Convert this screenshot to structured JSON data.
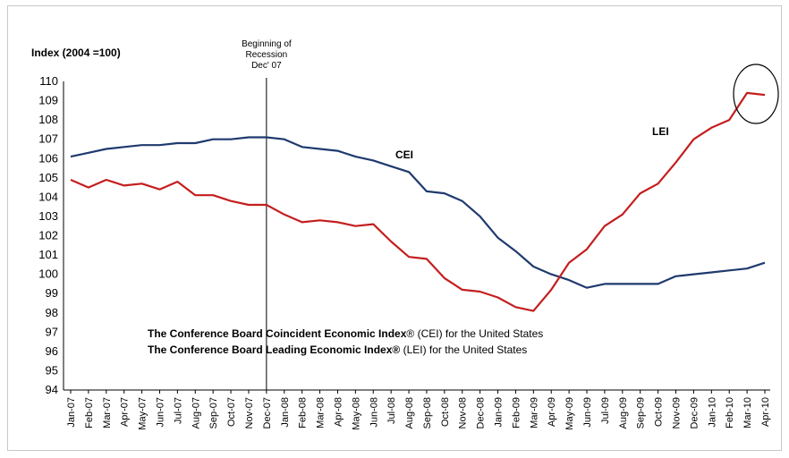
{
  "chart_data": {
    "type": "line",
    "ylabel": "Index (2004 =100)",
    "ylim": [
      94,
      110
    ],
    "yticks": [
      94,
      95,
      96,
      97,
      98,
      99,
      100,
      101,
      102,
      103,
      104,
      105,
      106,
      107,
      108,
      109,
      110
    ],
    "grid": false,
    "categories": [
      "Jan-07",
      "Feb-07",
      "Mar-07",
      "Apr-07",
      "May-07",
      "Jun-07",
      "Jul-07",
      "Aug-07",
      "Sep-07",
      "Oct-07",
      "Nov-07",
      "Dec-07",
      "Jan-08",
      "Feb-08",
      "Mar-08",
      "Apr-08",
      "May-08",
      "Jun-08",
      "Jul-08",
      "Aug-08",
      "Sep-08",
      "Oct-08",
      "Nov-08",
      "Dec-08",
      "Jan-09",
      "Feb-09",
      "Mar-09",
      "Apr-09",
      "May-09",
      "Jun-09",
      "Jul-09",
      "Aug-09",
      "Sep-09",
      "Oct-09",
      "Nov-09",
      "Dec-09",
      "Jan-10",
      "Feb-10",
      "Mar-10",
      "Apr-10"
    ],
    "series": [
      {
        "name": "CEI",
        "color": "#1f3a6e",
        "values": [
          106.1,
          106.3,
          106.5,
          106.6,
          106.7,
          106.7,
          106.8,
          106.8,
          107.0,
          107.0,
          107.1,
          107.1,
          107.0,
          106.6,
          106.5,
          106.4,
          106.1,
          105.9,
          105.6,
          105.3,
          104.3,
          104.2,
          103.8,
          103.0,
          101.9,
          101.2,
          100.4,
          100.0,
          99.7,
          99.3,
          99.5,
          99.5,
          99.5,
          99.5,
          99.9,
          100.0,
          100.1,
          100.2,
          100.3,
          100.6
        ]
      },
      {
        "name": "LEI",
        "color": "#c41e1e",
        "values": [
          104.9,
          104.5,
          104.9,
          104.6,
          104.7,
          104.4,
          104.8,
          104.1,
          104.1,
          103.8,
          103.6,
          103.6,
          103.1,
          102.7,
          102.8,
          102.7,
          102.5,
          102.6,
          101.7,
          100.9,
          100.8,
          99.8,
          99.2,
          99.1,
          98.8,
          98.3,
          98.1,
          99.2,
          100.6,
          101.3,
          102.5,
          103.1,
          104.2,
          104.7,
          105.8,
          107.0,
          107.6,
          108.0,
          109.4,
          109.3
        ]
      }
    ],
    "annotations": {
      "recession_line_at": "Dec-07",
      "recession_text": [
        "Beginning of",
        "Recession",
        "Dec' 07"
      ],
      "highlight_circle_around": [
        "Mar-10",
        "Apr-10"
      ]
    },
    "legend": {
      "line1_bold": "The Conference Board Coincident Economic Index",
      "line1_rest": "® (CEI) for the United States",
      "line2_bold": "The Conference Board Leading Economic Index®",
      "line2_rest": " (LEI) for the United  States"
    }
  }
}
